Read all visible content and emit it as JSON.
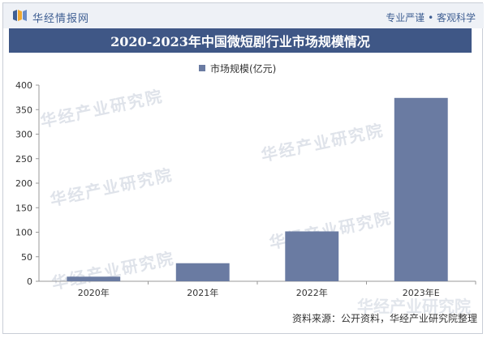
{
  "header": {
    "brand": "华经情报网",
    "tagline": "专业严谨 • 客观科学"
  },
  "title": "2020-2023年中国微短剧行业市场规模情况",
  "legend_label": "市场规模(亿元)",
  "footer": "资料来源：公开资料，华经产业研究院整理",
  "watermark_text": "华经产业研究院",
  "watermark_logo": "华经产业研究院",
  "colors": {
    "bar": "#6a7ba2",
    "title_bg": "#3f5786",
    "brand": "#3f5f93"
  },
  "chart_data": {
    "type": "bar",
    "categories": [
      "2020年",
      "2021年",
      "2022年",
      "2023年E"
    ],
    "series": [
      {
        "name": "市场规模(亿元)",
        "values": [
          9.4,
          36.8,
          101.7,
          373.9
        ]
      }
    ],
    "yticks": [
      0,
      50,
      100,
      150,
      200,
      250,
      300,
      350,
      400
    ],
    "ylim": [
      0,
      400
    ],
    "grid": false,
    "legend_position": "top-center"
  }
}
